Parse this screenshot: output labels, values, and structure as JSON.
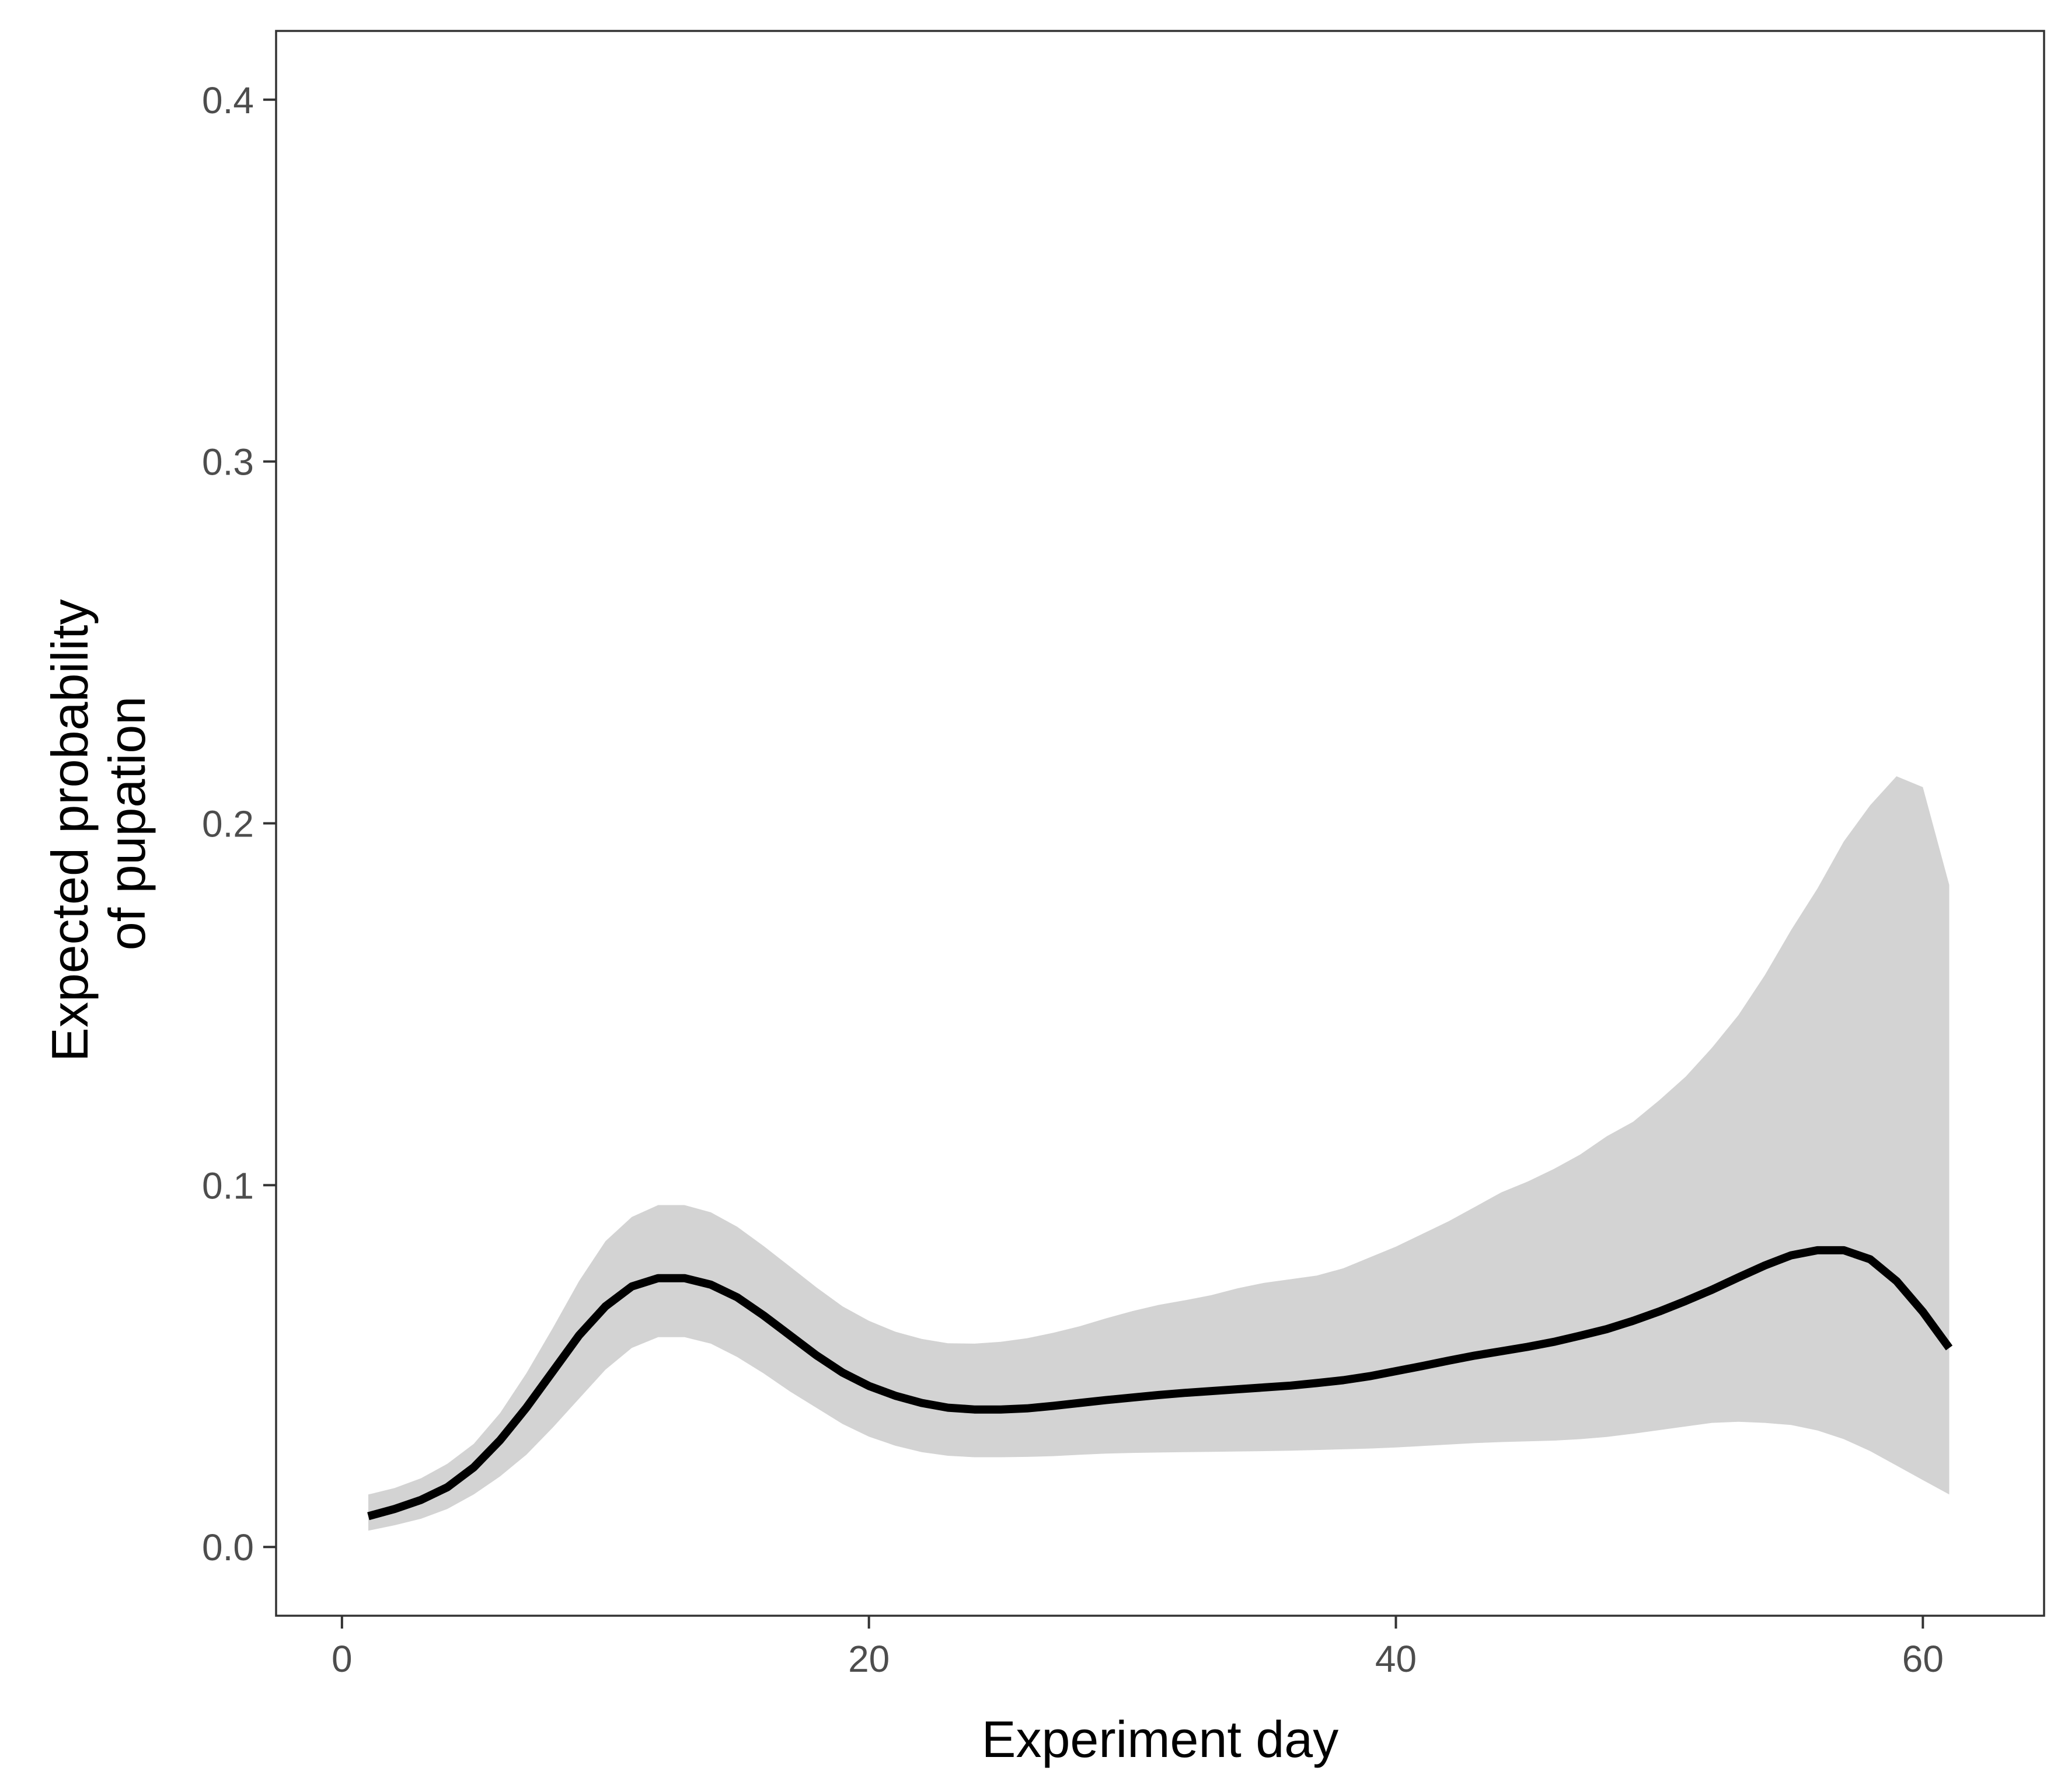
{
  "chart_data": {
    "type": "line",
    "title": "",
    "xlabel": "Experiment day",
    "ylabel": [
      "Expected probability",
      "of pupation"
    ],
    "xlim": [
      -2.5,
      64.6
    ],
    "ylim": [
      -0.019,
      0.419
    ],
    "x_ticks": [
      0,
      20,
      40,
      60
    ],
    "y_ticks": [
      0.0,
      0.1,
      0.2,
      0.3,
      0.4
    ],
    "x_tick_labels": [
      "0",
      "20",
      "40",
      "60"
    ],
    "y_tick_labels": [
      "0.0",
      "0.1",
      "0.2",
      "0.3",
      "0.4"
    ],
    "grid": false,
    "legend": "none",
    "colors": {
      "line": "#000000",
      "band": "#d3d3d3",
      "panel_border": "#333333",
      "tick_text": "#4d4d4d"
    },
    "series": [
      {
        "x": [
          1,
          2,
          3,
          4,
          5,
          6,
          7,
          8,
          9,
          10,
          11,
          12,
          13,
          14,
          15,
          16,
          17,
          18,
          19,
          20,
          21,
          22,
          23,
          24,
          25,
          26,
          27,
          28,
          29,
          30,
          31,
          32,
          33,
          34,
          35,
          36,
          37,
          38,
          39,
          40,
          41,
          42,
          43,
          44,
          45,
          46,
          47,
          48,
          49,
          50,
          51,
          52,
          53,
          54,
          55,
          56,
          57,
          58,
          59,
          60,
          61
        ],
        "y": [
          0.0085,
          0.0105,
          0.013,
          0.0165,
          0.022,
          0.0295,
          0.0385,
          0.0485,
          0.0585,
          0.0665,
          0.072,
          0.0743,
          0.0743,
          0.0725,
          0.069,
          0.064,
          0.0585,
          0.053,
          0.0482,
          0.0445,
          0.0418,
          0.0398,
          0.0385,
          0.038,
          0.038,
          0.0383,
          0.039,
          0.0398,
          0.0406,
          0.0413,
          0.042,
          0.0426,
          0.0431,
          0.0436,
          0.0441,
          0.0446,
          0.0453,
          0.0461,
          0.0472,
          0.0486,
          0.05,
          0.0515,
          0.0529,
          0.0541,
          0.0553,
          0.0567,
          0.0584,
          0.0602,
          0.0625,
          0.0651,
          0.068,
          0.0711,
          0.0745,
          0.0778,
          0.0806,
          0.082,
          0.082,
          0.0795,
          0.0735,
          0.065,
          0.055
        ],
        "lower": [
          0.0045,
          0.006,
          0.0078,
          0.0105,
          0.0145,
          0.0195,
          0.0255,
          0.033,
          0.041,
          0.049,
          0.055,
          0.058,
          0.058,
          0.0562,
          0.0525,
          0.048,
          0.043,
          0.0385,
          0.034,
          0.0305,
          0.028,
          0.0262,
          0.0252,
          0.0248,
          0.0248,
          0.0249,
          0.0251,
          0.0255,
          0.0258,
          0.026,
          0.0261,
          0.0262,
          0.0263,
          0.0264,
          0.0265,
          0.0266,
          0.0268,
          0.027,
          0.0272,
          0.0275,
          0.0279,
          0.0283,
          0.0287,
          0.029,
          0.0292,
          0.0294,
          0.0298,
          0.0304,
          0.0313,
          0.0323,
          0.0333,
          0.0343,
          0.0346,
          0.0343,
          0.0337,
          0.0322,
          0.0298,
          0.0265,
          0.0225,
          0.0185,
          0.0145
        ],
        "upper": [
          0.0145,
          0.0163,
          0.019,
          0.023,
          0.0285,
          0.037,
          0.048,
          0.0605,
          0.0735,
          0.0845,
          0.0912,
          0.0945,
          0.0945,
          0.0925,
          0.0885,
          0.0832,
          0.0775,
          0.0718,
          0.0665,
          0.0625,
          0.0595,
          0.0575,
          0.0563,
          0.0562,
          0.0567,
          0.0577,
          0.0592,
          0.061,
          0.0632,
          0.0652,
          0.0669,
          0.0682,
          0.0696,
          0.0715,
          0.073,
          0.074,
          0.075,
          0.077,
          0.08,
          0.083,
          0.0865,
          0.09,
          0.094,
          0.098,
          0.101,
          0.1045,
          0.1085,
          0.1135,
          0.1175,
          0.1235,
          0.13,
          0.138,
          0.147,
          0.158,
          0.1705,
          0.182,
          0.195,
          0.205,
          0.213,
          0.21,
          0.183
        ]
      }
    ]
  }
}
